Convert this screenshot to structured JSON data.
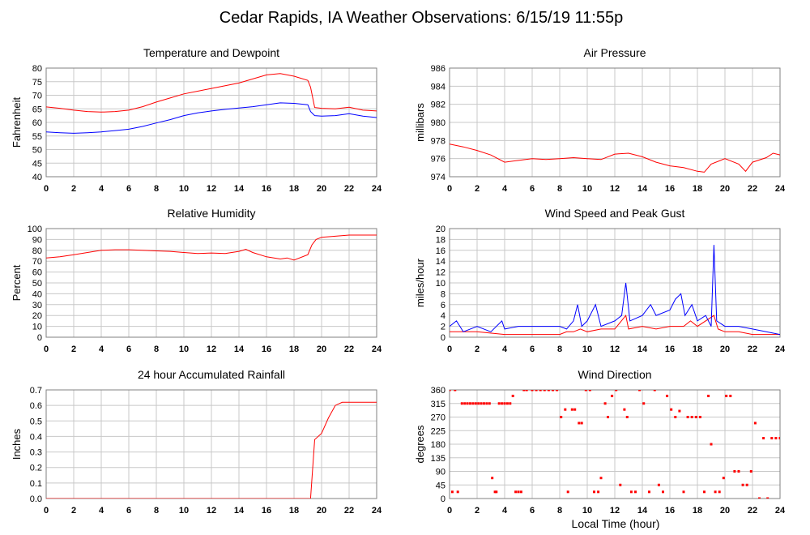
{
  "page_title": "Cedar Rapids, IA Weather Observations: 6/15/19 11:55p",
  "x_axis_label": "Local Time (hour)",
  "colors": {
    "red": "#ff0000",
    "blue": "#0000ff",
    "grid": "#c8c8c8",
    "frame": "#808080"
  },
  "chart_data": [
    {
      "id": "temp",
      "type": "line",
      "title": "Temperature and Dewpoint",
      "ylabel": "Fahrenheit",
      "xlim": [
        0,
        24
      ],
      "ylim": [
        40,
        80
      ],
      "yticks": [
        40,
        45,
        50,
        55,
        60,
        65,
        70,
        75,
        80
      ],
      "xticks": [
        0,
        2,
        4,
        6,
        8,
        10,
        12,
        14,
        16,
        18,
        20,
        22,
        24
      ],
      "grid": true,
      "series": [
        {
          "color": "#ff0000",
          "x": [
            0,
            1,
            2,
            3,
            4,
            5,
            6,
            7,
            8,
            9,
            10,
            11,
            12,
            13,
            14,
            15,
            16,
            17,
            18,
            19,
            19.2,
            19.5,
            20,
            21,
            22,
            23,
            24
          ],
          "y": [
            65.7,
            65.2,
            64.5,
            64.0,
            63.8,
            64.0,
            64.5,
            65.8,
            67.5,
            69.0,
            70.5,
            71.5,
            72.5,
            73.5,
            74.5,
            76.0,
            77.5,
            78.0,
            77.0,
            75.5,
            73.0,
            65.5,
            65.2,
            65.0,
            65.6,
            64.5,
            64.2
          ]
        },
        {
          "color": "#0000ff",
          "x": [
            0,
            1,
            2,
            3,
            4,
            5,
            6,
            7,
            8,
            9,
            10,
            11,
            12,
            13,
            14,
            15,
            16,
            17,
            18,
            19,
            19.2,
            19.5,
            20,
            21,
            22,
            23,
            24
          ],
          "y": [
            56.5,
            56.2,
            56.0,
            56.2,
            56.5,
            57.0,
            57.5,
            58.5,
            59.8,
            61.0,
            62.5,
            63.5,
            64.2,
            64.8,
            65.3,
            65.8,
            66.5,
            67.2,
            67.0,
            66.5,
            64.0,
            62.5,
            62.3,
            62.5,
            63.2,
            62.3,
            61.8
          ]
        }
      ]
    },
    {
      "id": "pressure",
      "type": "line",
      "title": "Air Pressure",
      "ylabel": "millibars",
      "xlim": [
        0,
        24
      ],
      "ylim": [
        974,
        986
      ],
      "yticks": [
        974,
        976,
        978,
        980,
        982,
        984,
        986
      ],
      "xticks": [
        0,
        2,
        4,
        6,
        8,
        10,
        12,
        14,
        16,
        18,
        20,
        22,
        24
      ],
      "grid": true,
      "series": [
        {
          "color": "#ff0000",
          "x": [
            0,
            1,
            2,
            3,
            4,
            5,
            6,
            7,
            8,
            9,
            10,
            11,
            12,
            13,
            14,
            15,
            16,
            17,
            18,
            18.5,
            19,
            20,
            21,
            21.5,
            22,
            23,
            23.5,
            24
          ],
          "y": [
            977.6,
            977.3,
            976.9,
            976.4,
            975.6,
            975.8,
            976.0,
            975.9,
            976.0,
            976.1,
            976.0,
            975.9,
            976.5,
            976.6,
            976.2,
            975.6,
            975.2,
            975.0,
            974.6,
            974.5,
            975.4,
            976.0,
            975.4,
            974.6,
            975.6,
            976.1,
            976.6,
            976.4
          ]
        }
      ]
    },
    {
      "id": "rh",
      "type": "line",
      "title": "Relative Humidity",
      "ylabel": "Percent",
      "xlim": [
        0,
        24
      ],
      "ylim": [
        0,
        100
      ],
      "yticks": [
        0,
        10,
        20,
        30,
        40,
        50,
        60,
        70,
        80,
        90,
        100
      ],
      "xticks": [
        0,
        2,
        4,
        6,
        8,
        10,
        12,
        14,
        16,
        18,
        20,
        22,
        24
      ],
      "grid": true,
      "series": [
        {
          "color": "#ff0000",
          "x": [
            0,
            1,
            2,
            3,
            4,
            5,
            6,
            7,
            8,
            9,
            10,
            11,
            12,
            13,
            14,
            14.5,
            15,
            16,
            17,
            17.5,
            18,
            19,
            19.3,
            19.6,
            20,
            21,
            22,
            23,
            24
          ],
          "y": [
            73,
            74,
            76,
            78,
            80,
            80.5,
            80.5,
            80,
            79.5,
            79,
            78,
            77,
            77.5,
            77,
            79,
            81,
            78,
            74,
            72,
            73,
            71,
            76,
            85,
            90,
            92,
            93,
            94,
            94,
            94
          ]
        }
      ]
    },
    {
      "id": "wind",
      "type": "line",
      "title": "Wind Speed and Peak Gust",
      "ylabel": "miles/hour",
      "xlim": [
        0,
        24
      ],
      "ylim": [
        0,
        20
      ],
      "yticks": [
        0,
        2,
        4,
        6,
        8,
        10,
        12,
        14,
        16,
        18,
        20
      ],
      "xticks": [
        0,
        2,
        4,
        6,
        8,
        10,
        12,
        14,
        16,
        18,
        20,
        22,
        24
      ],
      "grid": true,
      "series": [
        {
          "color": "#ff0000",
          "x": [
            0,
            2,
            4,
            6,
            8,
            8.5,
            9,
            9.5,
            10,
            11,
            12,
            12.8,
            13,
            14,
            15,
            16,
            17,
            17.5,
            18,
            19.2,
            19.5,
            20,
            21,
            22,
            23,
            24
          ],
          "y": [
            1,
            1,
            0.5,
            0.5,
            0.5,
            1,
            1,
            1.5,
            1,
            1.5,
            1.5,
            4,
            1.5,
            2,
            1.5,
            2,
            2,
            3,
            2,
            4,
            1.5,
            1,
            1,
            0.5,
            0.5,
            0.5
          ]
        },
        {
          "color": "#0000ff",
          "x": [
            0,
            0.5,
            1,
            2,
            3,
            3.8,
            4,
            5,
            6,
            7,
            8,
            8.5,
            9,
            9.3,
            9.6,
            10,
            10.6,
            11,
            12,
            12.5,
            12.8,
            13.1,
            14,
            14.6,
            15,
            16,
            16.4,
            16.8,
            17.1,
            17.6,
            18,
            18.6,
            19,
            19.2,
            19.4,
            20,
            21,
            22,
            23,
            24
          ],
          "y": [
            2,
            3,
            1,
            2,
            1,
            3,
            1.5,
            2,
            2,
            2,
            2,
            1.5,
            3,
            6,
            2,
            3,
            6,
            2,
            3,
            4,
            10,
            3,
            4,
            6,
            4,
            5,
            7,
            8,
            4,
            6,
            3,
            4,
            2,
            17,
            3,
            2,
            2,
            1.5,
            1,
            0.5
          ]
        }
      ]
    },
    {
      "id": "rain",
      "type": "line",
      "title": "24 hour Accumulated Rainfall",
      "ylabel": "Inches",
      "xlim": [
        0,
        24
      ],
      "ylim": [
        0,
        0.7
      ],
      "yticks": [
        0.0,
        0.1,
        0.2,
        0.3,
        0.4,
        0.5,
        0.6,
        0.7
      ],
      "ytick_labels": [
        "0.0",
        "0.1",
        "0.2",
        "0.3",
        "0.4",
        "0.5",
        "0.6",
        "0.7"
      ],
      "xticks": [
        0,
        2,
        4,
        6,
        8,
        10,
        12,
        14,
        16,
        18,
        20,
        22,
        24
      ],
      "grid": true,
      "series": [
        {
          "color": "#ff0000",
          "x": [
            0,
            19.2,
            19.5,
            20,
            20.5,
            21,
            21.5,
            22,
            23,
            24
          ],
          "y": [
            0,
            0,
            0.38,
            0.42,
            0.52,
            0.6,
            0.62,
            0.62,
            0.62,
            0.62
          ]
        }
      ]
    },
    {
      "id": "winddir",
      "type": "scatter",
      "title": "Wind Direction",
      "ylabel": "degrees",
      "xlim": [
        0,
        24
      ],
      "ylim": [
        0,
        360
      ],
      "yticks": [
        0,
        45,
        90,
        135,
        180,
        225,
        270,
        315,
        360
      ],
      "xticks": [
        0,
        2,
        4,
        6,
        8,
        10,
        12,
        14,
        16,
        18,
        20,
        22,
        24
      ],
      "grid": true,
      "series": [
        {
          "color": "#ff0000",
          "x": [
            0,
            0.2,
            0.4,
            0.6,
            0.9,
            1.1,
            1.3,
            1.5,
            1.7,
            1.9,
            2.1,
            2.3,
            2.5,
            2.7,
            2.9,
            3.1,
            3.3,
            3.4,
            3.6,
            3.8,
            4.0,
            4.2,
            4.4,
            4.6,
            4.8,
            5.0,
            5.2,
            5.4,
            5.6,
            6.0,
            6.3,
            6.6,
            6.9,
            7.2,
            7.5,
            7.8,
            8.1,
            8.4,
            8.6,
            8.9,
            9.1,
            9.4,
            9.6,
            9.9,
            10.2,
            10.5,
            10.8,
            11.0,
            11.3,
            11.5,
            11.8,
            12.1,
            12.4,
            12.7,
            12.9,
            13.2,
            13.5,
            13.8,
            14.1,
            14.5,
            14.9,
            15.2,
            15.5,
            15.8,
            16.1,
            16.4,
            16.7,
            17.0,
            17.3,
            17.6,
            17.9,
            18.2,
            18.5,
            18.8,
            19.0,
            19.3,
            19.6,
            19.9,
            20.1,
            20.4,
            20.7,
            21.0,
            21.3,
            21.6,
            21.9,
            22.2,
            22.5,
            22.8,
            23.1,
            23.4,
            23.7,
            24.0
          ],
          "y": [
            360,
            22,
            360,
            22,
            315,
            315,
            315,
            315,
            315,
            315,
            315,
            315,
            315,
            315,
            315,
            68,
            22,
            22,
            315,
            315,
            315,
            315,
            315,
            340,
            22,
            22,
            22,
            360,
            360,
            360,
            360,
            360,
            360,
            360,
            360,
            360,
            270,
            295,
            22,
            295,
            295,
            250,
            250,
            360,
            360,
            22,
            22,
            68,
            315,
            270,
            340,
            360,
            45,
            295,
            270,
            22,
            22,
            360,
            315,
            22,
            360,
            45,
            22,
            340,
            295,
            270,
            290,
            22,
            270,
            270,
            270,
            270,
            22,
            340,
            180,
            22,
            22,
            68,
            340,
            340,
            90,
            90,
            45,
            45,
            90,
            250,
            0,
            200,
            0,
            200,
            200,
            200
          ]
        }
      ]
    }
  ]
}
